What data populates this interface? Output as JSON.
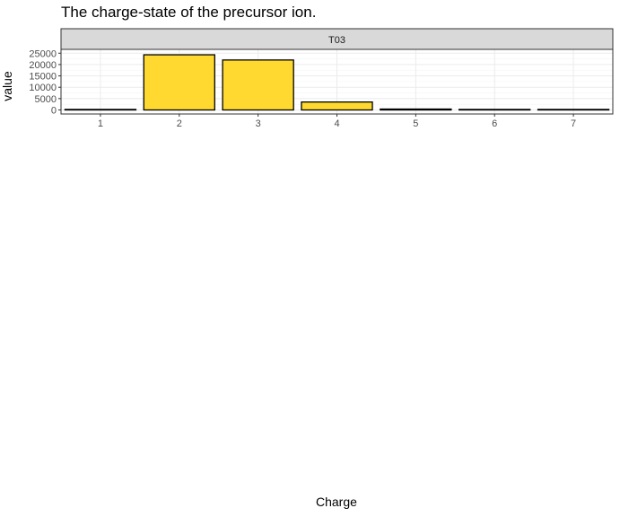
{
  "chart_data": {
    "type": "bar",
    "title": "The charge-state of the precursor ion.",
    "xlabel": "Charge",
    "ylabel": "value",
    "facet": "T03",
    "categories": [
      "1",
      "2",
      "3",
      "4",
      "5",
      "6",
      "7"
    ],
    "values": [
      50,
      24300,
      22000,
      3500,
      400,
      20,
      10
    ],
    "yticks": [
      0,
      5000,
      10000,
      15000,
      20000,
      25000
    ],
    "ylim": [
      0,
      25500
    ],
    "grid": true,
    "bar_color": "#FFD92F",
    "bar_outline": "#000000",
    "panel_border": "#333333",
    "strip_fill": "#D9D9D9",
    "grid_color": "#EBEBEB"
  }
}
